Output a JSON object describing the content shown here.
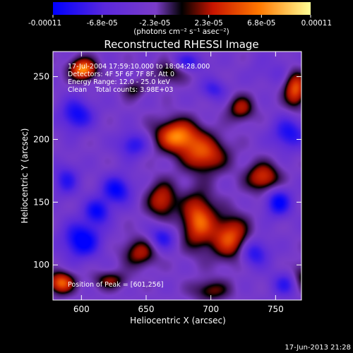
{
  "chart_data": {
    "type": "heatmap",
    "title": "Reconstructed RHESSI Image",
    "xlabel": "Heliocentric X (arcsec)",
    "ylabel": "Heliocentric Y (arcsec)",
    "xlim": [
      578,
      770
    ],
    "ylim": [
      72,
      270
    ],
    "x_ticks": [
      600,
      650,
      700,
      750
    ],
    "y_ticks": [
      100,
      150,
      200,
      250
    ],
    "colorbar": {
      "min": -0.00011,
      "max": 0.00011,
      "tick_values": [
        -0.00011,
        -6.8e-05,
        -2.3e-05,
        2.3e-05,
        6.8e-05,
        0.00011
      ],
      "tick_labels": [
        "-0.00011",
        "-6.8e-05",
        "-2.3e-05",
        "2.3e-05",
        "6.8e-05",
        "0.00011"
      ],
      "units_label": "(photons cm⁻² s⁻¹ asec⁻²)",
      "colors": [
        "#0000ff",
        "#7a3cc8",
        "#000000",
        "#c81400",
        "#ff7800",
        "#ffff96"
      ]
    },
    "annotations": {
      "time": "17-Jul-2004 17:59:10.000 to 18:04:28.000",
      "detectors": "Detectors: 4F 5F 6F 7F 8F, Att 0",
      "energy": "Energy Range: 12.0 - 25.0 keV",
      "clean": "Clean    Total counts: 3.98E+03",
      "peak": "Position of Peak = [601,256]"
    },
    "features": [
      {
        "x": 601,
        "y": 256,
        "amp": 1.0,
        "sx": 7,
        "sy": 6
      },
      {
        "x": 584,
        "y": 86,
        "amp": 0.85,
        "sx": 7,
        "sy": 6
      },
      {
        "x": 674,
        "y": 203,
        "amp": 0.95,
        "sx": 12,
        "sy": 9
      },
      {
        "x": 695,
        "y": 188,
        "amp": 0.75,
        "sx": 12,
        "sy": 10
      },
      {
        "x": 690,
        "y": 136,
        "amp": 0.85,
        "sx": 9,
        "sy": 15
      },
      {
        "x": 715,
        "y": 122,
        "amp": 0.8,
        "sx": 10,
        "sy": 12
      },
      {
        "x": 662,
        "y": 152,
        "amp": 0.65,
        "sx": 8,
        "sy": 10
      },
      {
        "x": 740,
        "y": 170,
        "amp": 0.7,
        "sx": 9,
        "sy": 8
      },
      {
        "x": 765,
        "y": 240,
        "amp": 0.8,
        "sx": 6,
        "sy": 10
      },
      {
        "x": 645,
        "y": 110,
        "amp": 0.55,
        "sx": 9,
        "sy": 8
      },
      {
        "x": 723,
        "y": 225,
        "amp": 0.55,
        "sx": 7,
        "sy": 7
      },
      {
        "x": 668,
        "y": 255,
        "amp": 0.45,
        "sx": 8,
        "sy": 7
      },
      {
        "x": 622,
        "y": 88,
        "amp": 0.45,
        "sx": 9,
        "sy": 5
      },
      {
        "x": 700,
        "y": 80,
        "amp": 0.45,
        "sx": 10,
        "sy": 6
      },
      {
        "x": 770,
        "y": 90,
        "amp": 0.45,
        "sx": 6,
        "sy": 8
      },
      {
        "x": 745,
        "y": 258,
        "amp": 0.4,
        "sx": 7,
        "sy": 6
      },
      {
        "x": 640,
        "y": 240,
        "amp": 0.35,
        "sx": 6,
        "sy": 5
      },
      {
        "x": 627,
        "y": 160,
        "amp": -0.65,
        "sx": 8,
        "sy": 8
      },
      {
        "x": 596,
        "y": 220,
        "amp": -0.6,
        "sx": 9,
        "sy": 9
      },
      {
        "x": 600,
        "y": 120,
        "amp": -0.75,
        "sx": 10,
        "sy": 10
      },
      {
        "x": 612,
        "y": 143,
        "amp": -0.6,
        "sx": 7,
        "sy": 7
      },
      {
        "x": 746,
        "y": 257,
        "amp": -0.5,
        "sx": 9,
        "sy": 7
      },
      {
        "x": 760,
        "y": 205,
        "amp": -0.55,
        "sx": 9,
        "sy": 9
      },
      {
        "x": 752,
        "y": 150,
        "amp": -0.65,
        "sx": 7,
        "sy": 8
      },
      {
        "x": 733,
        "y": 110,
        "amp": -0.55,
        "sx": 8,
        "sy": 8
      },
      {
        "x": 662,
        "y": 122,
        "amp": -0.5,
        "sx": 7,
        "sy": 7
      },
      {
        "x": 640,
        "y": 196,
        "amp": -0.5,
        "sx": 8,
        "sy": 7
      },
      {
        "x": 680,
        "y": 262,
        "amp": -0.45,
        "sx": 10,
        "sy": 5
      },
      {
        "x": 702,
        "y": 240,
        "amp": -0.4,
        "sx": 7,
        "sy": 6
      },
      {
        "x": 588,
        "y": 168,
        "amp": -0.45,
        "sx": 7,
        "sy": 9
      },
      {
        "x": 758,
        "y": 85,
        "amp": -0.45,
        "sx": 8,
        "sy": 7
      }
    ]
  },
  "footer": {
    "timestamp": "17-Jun-2013 21:28"
  }
}
